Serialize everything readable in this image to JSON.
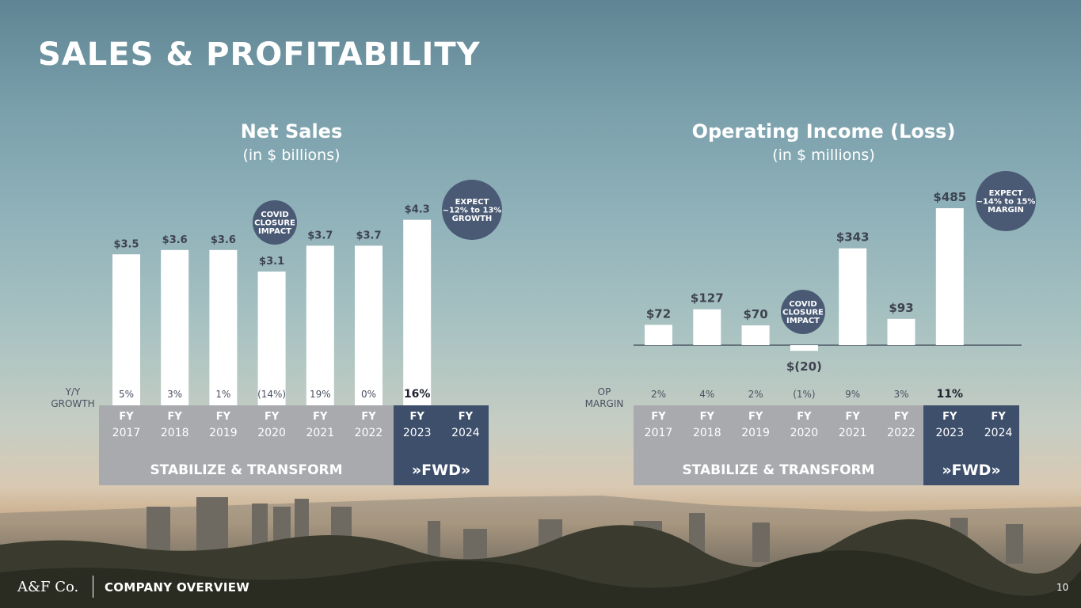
{
  "page_title": "SALES & PROFITABILITY",
  "footer": {
    "logo": "A&F Co.",
    "section": "COMPANY OVERVIEW",
    "page_number": "10"
  },
  "colors": {
    "bar": "#ffffff",
    "badge": "#4a5a75",
    "stabilize_band": "#a8aaae",
    "fwd_band": "#3e4f6c"
  },
  "chart_data": [
    {
      "type": "bar",
      "title": "Net Sales",
      "subtitle": "(in $ billions)",
      "categories": [
        "FY 2017",
        "FY 2018",
        "FY 2019",
        "FY 2020",
        "FY 2021",
        "FY 2022",
        "FY 2023",
        "FY 2024"
      ],
      "values": [
        3.5,
        3.6,
        3.6,
        3.1,
        3.7,
        3.7,
        4.3,
        null
      ],
      "data_labels": [
        "$3.5",
        "$3.6",
        "$3.6",
        "$3.1",
        "$3.7",
        "$3.7",
        "$4.3",
        ""
      ],
      "row_label_lines": [
        "Y/Y",
        "GROWTH"
      ],
      "row_values": [
        "5%",
        "3%",
        "1%",
        "(14%)",
        "19%",
        "0%",
        "16%",
        ""
      ],
      "covid_badge_lines": [
        "COVID",
        "CLOSURE",
        "IMPACT"
      ],
      "expect_badge_lines": [
        "EXPECT",
        "~12% to 13%",
        "GROWTH"
      ],
      "band_labels": {
        "stabilize": "STABILIZE & TRANSFORM",
        "fwd": "»FWD»"
      }
    },
    {
      "type": "bar",
      "title": "Operating Income (Loss)",
      "subtitle": "(in $ millions)",
      "categories": [
        "FY 2017",
        "FY 2018",
        "FY 2019",
        "FY 2020",
        "FY 2021",
        "FY 2022",
        "FY 2023",
        "FY 2024"
      ],
      "values": [
        72,
        127,
        70,
        -20,
        343,
        93,
        485,
        null
      ],
      "data_labels": [
        "$72",
        "$127",
        "$70",
        "$(20)",
        "$343",
        "$93",
        "$485",
        ""
      ],
      "row_label_lines": [
        "OP",
        "MARGIN"
      ],
      "row_values": [
        "2%",
        "4%",
        "2%",
        "(1%)",
        "9%",
        "3%",
        "11%",
        ""
      ],
      "covid_badge_lines": [
        "COVID",
        "CLOSURE",
        "IMPACT"
      ],
      "expect_badge_lines": [
        "EXPECT",
        "~14% to 15%",
        "MARGIN"
      ],
      "band_labels": {
        "stabilize": "STABILIZE & TRANSFORM",
        "fwd": "»FWD»"
      }
    }
  ]
}
